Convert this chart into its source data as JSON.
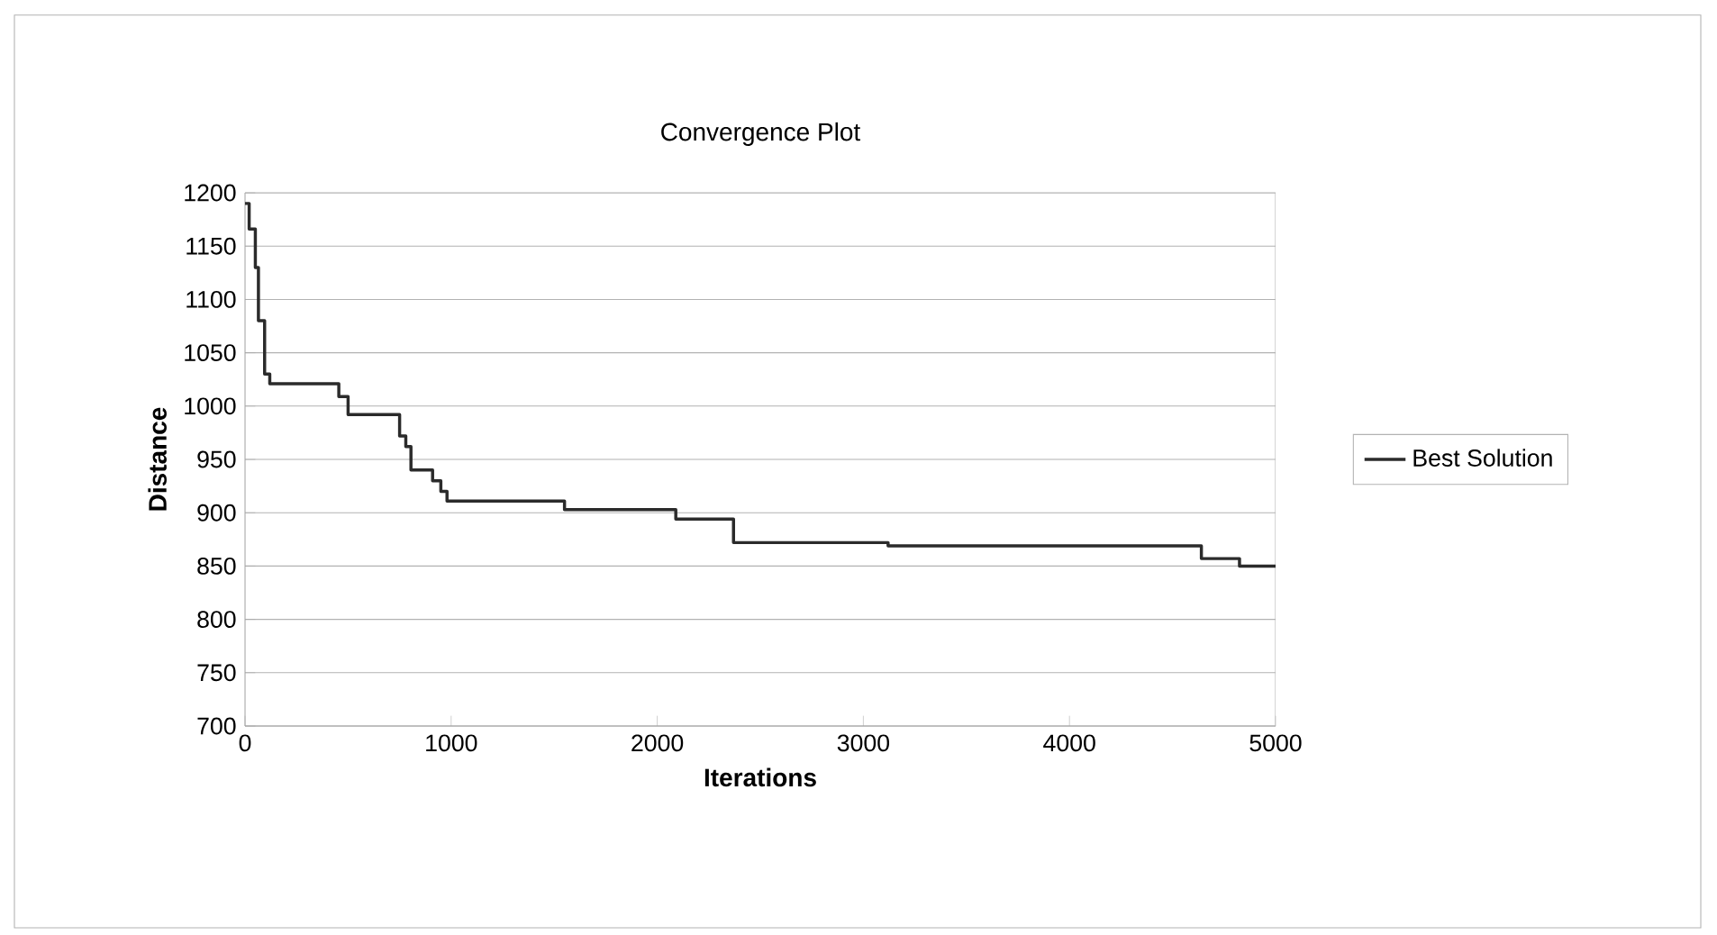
{
  "chart_data": {
    "type": "step",
    "title": "Convergence Plot",
    "xlabel": "Iterations",
    "ylabel": "Distance",
    "x": [
      0,
      20,
      50,
      65,
      95,
      120,
      455,
      500,
      750,
      780,
      805,
      910,
      950,
      980,
      1550,
      2090,
      2370,
      3120,
      4640,
      4825,
      5000
    ],
    "series": [
      {
        "name": "Best Solution",
        "color": "#2b2b2b",
        "values": [
          1190,
          1166,
          1130,
          1080,
          1030,
          1021,
          1009,
          992,
          972,
          962,
          940,
          930,
          920,
          911,
          903,
          894,
          872,
          869,
          857,
          850,
          850
        ]
      }
    ],
    "xlim": [
      0,
      5000
    ],
    "ylim": [
      700,
      1200
    ],
    "xticks": [
      0,
      1000,
      2000,
      3000,
      4000,
      5000
    ],
    "yticks": [
      700,
      750,
      800,
      850,
      900,
      950,
      1000,
      1050,
      1100,
      1150,
      1200
    ],
    "grid": "y",
    "legend": "right",
    "marker": "none",
    "line_style": "solid"
  }
}
